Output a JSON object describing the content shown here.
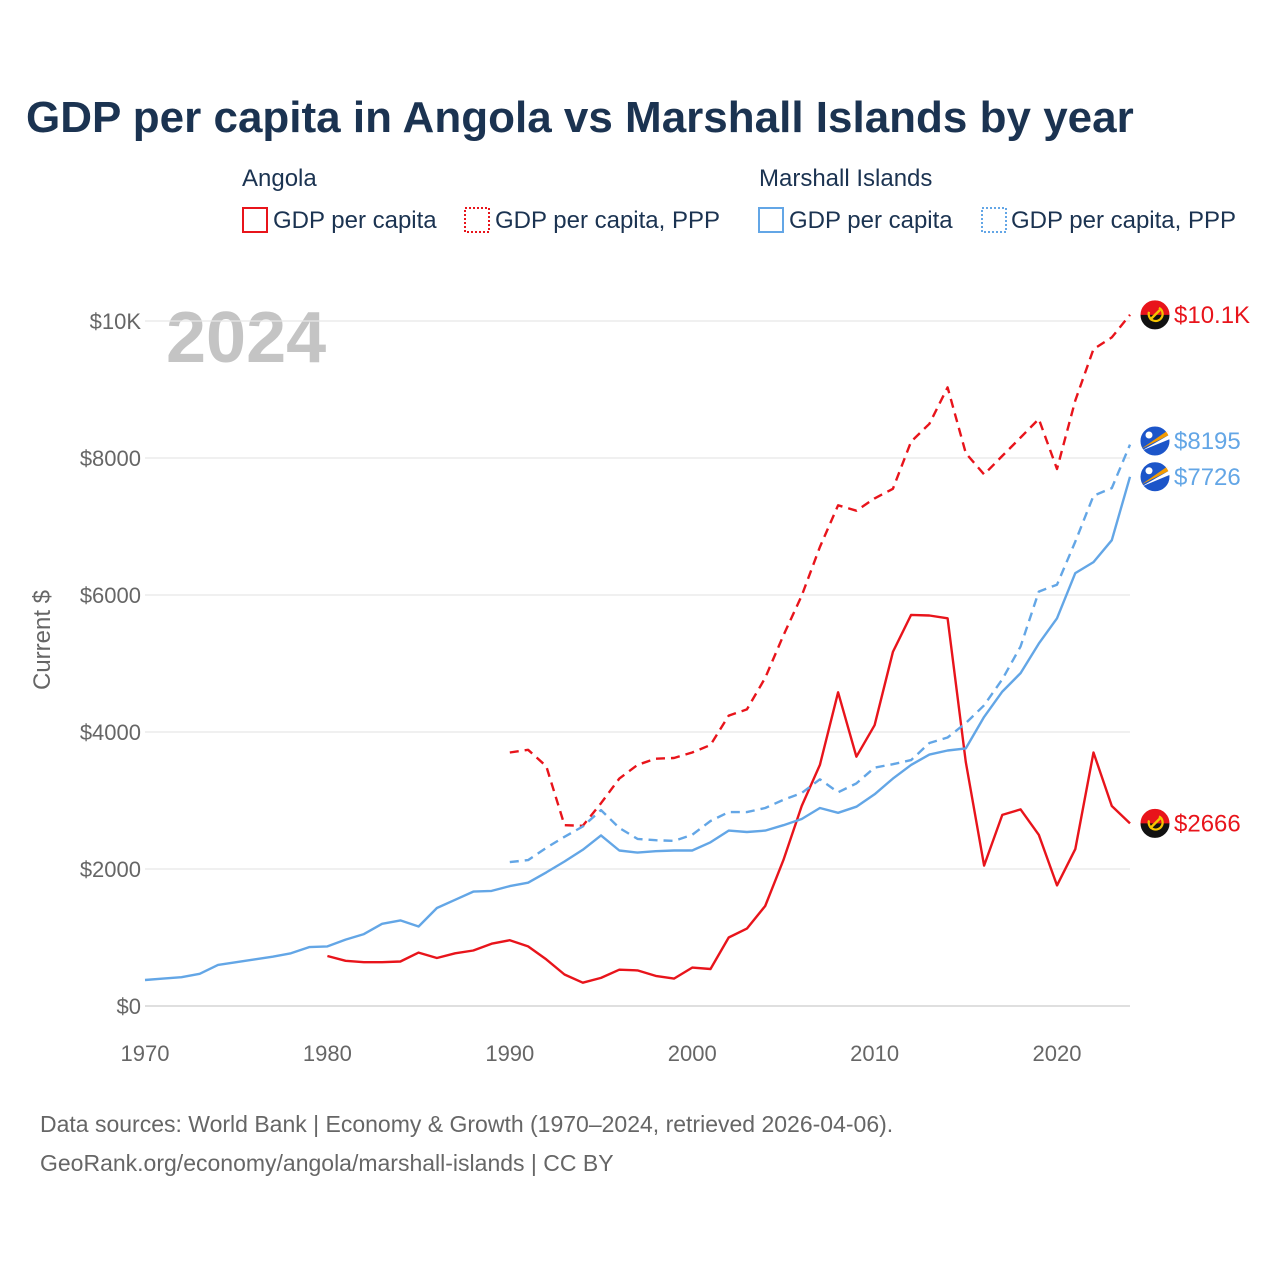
{
  "chart_data": {
    "type": "line",
    "title": "GDP per capita in Angola vs Marshall Islands by year",
    "year_label": "2024",
    "ylabel": "Current $",
    "xlabel": "",
    "xlim": [
      1970,
      2024
    ],
    "ylim": [
      0,
      10000
    ],
    "x_ticks": [
      {
        "value": 1970,
        "label": "1970"
      },
      {
        "value": 1980,
        "label": "1980"
      },
      {
        "value": 1990,
        "label": "1990"
      },
      {
        "value": 2000,
        "label": "2000"
      },
      {
        "value": 2010,
        "label": "2010"
      },
      {
        "value": 2020,
        "label": "2020"
      }
    ],
    "y_ticks": [
      {
        "value": 0,
        "label": "$0"
      },
      {
        "value": 2000,
        "label": "$2000"
      },
      {
        "value": 4000,
        "label": "$4000"
      },
      {
        "value": 6000,
        "label": "$6000"
      },
      {
        "value": 8000,
        "label": "$8000"
      },
      {
        "value": 10000,
        "label": "$10K"
      }
    ],
    "grid": true,
    "legend": {
      "position": "top",
      "groups": [
        {
          "name": "Angola",
          "items": [
            "GDP per capita",
            "GDP per capita, PPP"
          ]
        },
        {
          "name": "Marshall Islands",
          "items": [
            "GDP per capita",
            "GDP per capita, PPP"
          ]
        }
      ]
    },
    "colors": {
      "angola": "#e8141b",
      "marshall": "#63a6e6"
    },
    "series": [
      {
        "name": "Angola GDP per capita",
        "country": "angola",
        "style": "solid",
        "end_label": "$2666",
        "x": [
          1980,
          1981,
          1982,
          1983,
          1984,
          1985,
          1986,
          1987,
          1988,
          1989,
          1990,
          1991,
          1992,
          1993,
          1994,
          1995,
          1996,
          1997,
          1998,
          1999,
          2000,
          2001,
          2002,
          2003,
          2004,
          2005,
          2006,
          2007,
          2008,
          2009,
          2010,
          2011,
          2012,
          2013,
          2014,
          2015,
          2016,
          2017,
          2018,
          2019,
          2020,
          2021,
          2022,
          2023,
          2024
        ],
        "values": [
          730,
          660,
          640,
          640,
          650,
          780,
          700,
          770,
          810,
          910,
          960,
          870,
          680,
          460,
          340,
          410,
          530,
          520,
          440,
          400,
          560,
          540,
          1000,
          1130,
          1460,
          2130,
          2920,
          3520,
          4580,
          3640,
          4100,
          5170,
          5710,
          5700,
          5660,
          3560,
          2050,
          2790,
          2870,
          2500,
          1760,
          2290,
          3700,
          2920,
          2666
        ]
      },
      {
        "name": "Angola GDP per capita, PPP",
        "country": "angola",
        "style": "dashed",
        "end_label": "$10.1K",
        "x": [
          1990,
          1991,
          1992,
          1993,
          1994,
          1995,
          1996,
          1997,
          1998,
          1999,
          2000,
          2001,
          2002,
          2003,
          2004,
          2005,
          2006,
          2007,
          2008,
          2009,
          2010,
          2011,
          2012,
          2013,
          2014,
          2015,
          2016,
          2017,
          2018,
          2019,
          2020,
          2021,
          2022,
          2023,
          2024
        ],
        "values": [
          3700,
          3740,
          3500,
          2640,
          2630,
          2960,
          3320,
          3520,
          3610,
          3620,
          3700,
          3810,
          4240,
          4330,
          4790,
          5410,
          5990,
          6700,
          7310,
          7230,
          7410,
          7550,
          8240,
          8500,
          9030,
          8070,
          7760,
          8030,
          8300,
          8570,
          7840,
          8840,
          9590,
          9760,
          10090
        ]
      },
      {
        "name": "Marshall Islands GDP per capita",
        "country": "marshall",
        "style": "solid",
        "end_label": "$7726",
        "x": [
          1970,
          1971,
          1972,
          1973,
          1974,
          1975,
          1976,
          1977,
          1978,
          1979,
          1980,
          1981,
          1982,
          1983,
          1984,
          1985,
          1986,
          1987,
          1988,
          1989,
          1990,
          1991,
          1992,
          1993,
          1994,
          1995,
          1996,
          1997,
          1998,
          1999,
          2000,
          2001,
          2002,
          2003,
          2004,
          2005,
          2006,
          2007,
          2008,
          2009,
          2010,
          2011,
          2012,
          2013,
          2014,
          2015,
          2016,
          2017,
          2018,
          2019,
          2020,
          2021,
          2022,
          2023,
          2024
        ],
        "values": [
          380,
          400,
          420,
          470,
          600,
          640,
          680,
          720,
          770,
          860,
          870,
          970,
          1050,
          1200,
          1250,
          1160,
          1430,
          1550,
          1670,
          1680,
          1750,
          1800,
          1950,
          2110,
          2280,
          2490,
          2270,
          2240,
          2260,
          2270,
          2270,
          2390,
          2560,
          2540,
          2560,
          2640,
          2730,
          2890,
          2820,
          2910,
          3090,
          3320,
          3520,
          3670,
          3730,
          3760,
          4220,
          4590,
          4860,
          5290,
          5660,
          6320,
          6480,
          6800,
          7726
        ]
      },
      {
        "name": "Marshall Islands GDP per capita, PPP",
        "country": "marshall",
        "style": "dashed",
        "end_label": "$8195",
        "x": [
          1990,
          1991,
          1992,
          1993,
          1994,
          1995,
          1996,
          1997,
          1998,
          1999,
          2000,
          2001,
          2002,
          2003,
          2004,
          2005,
          2006,
          2007,
          2008,
          2009,
          2010,
          2011,
          2012,
          2013,
          2014,
          2015,
          2016,
          2017,
          2018,
          2019,
          2020,
          2021,
          2022,
          2023,
          2024
        ],
        "values": [
          2100,
          2130,
          2310,
          2470,
          2620,
          2860,
          2600,
          2440,
          2420,
          2410,
          2500,
          2700,
          2830,
          2830,
          2890,
          3010,
          3110,
          3310,
          3120,
          3250,
          3480,
          3530,
          3590,
          3840,
          3920,
          4130,
          4390,
          4770,
          5250,
          6050,
          6150,
          6780,
          7450,
          7560,
          8195
        ]
      }
    ]
  },
  "source": {
    "line1": "Data sources: World Bank | Economy & Growth (1970–2024, retrieved 2026-04-06).",
    "line2": "GeoRank.org/economy/angola/marshall-islands | CC BY"
  }
}
